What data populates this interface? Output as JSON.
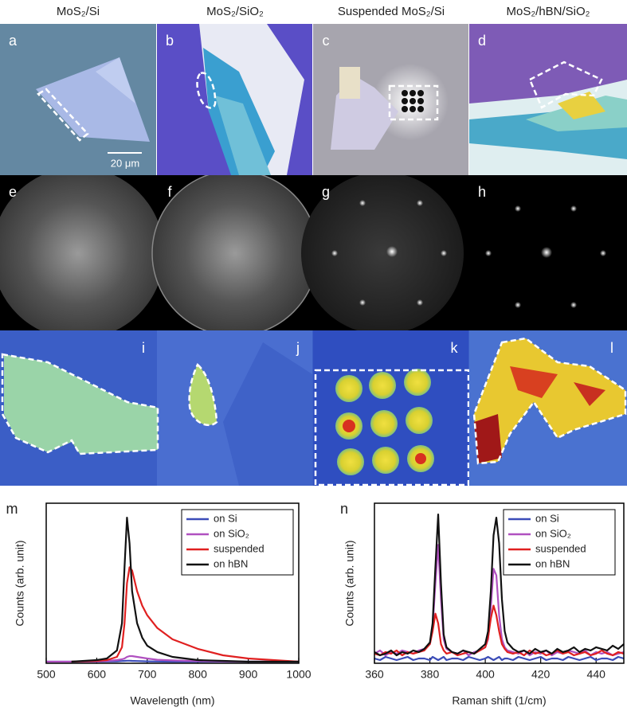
{
  "column_titles": [
    "MoS₂/Si",
    "MoS₂/SiO₂",
    "Suspended MoS₂/Si",
    "MoS₂/hBN/SiO₂"
  ],
  "panel_labels": [
    "a",
    "b",
    "c",
    "d",
    "e",
    "f",
    "g",
    "h",
    "i",
    "j",
    "k",
    "l"
  ],
  "scale_bar": "20 μm",
  "chart_data": [
    {
      "type": "line",
      "label": "m",
      "xlabel": "Wavelength (nm)",
      "ylabel": "Counts (arb. unit)",
      "xlim": [
        500,
        1000
      ],
      "xticks": [
        500,
        600,
        700,
        800,
        900,
        1000
      ],
      "ylim": [
        0,
        1
      ],
      "x": [
        500,
        550,
        600,
        620,
        640,
        650,
        655,
        660,
        665,
        670,
        680,
        690,
        700,
        720,
        750,
        800,
        850,
        900,
        950,
        1000
      ],
      "series": [
        {
          "name": "on Si",
          "color": "#3b4cb8",
          "values": [
            0.01,
            0.01,
            0.01,
            0.011,
            0.012,
            0.014,
            0.015,
            0.016,
            0.016,
            0.015,
            0.014,
            0.013,
            0.012,
            0.011,
            0.01,
            0.01,
            0.01,
            0.01,
            0.01,
            0.01
          ]
        },
        {
          "name": "on SiO₂",
          "color": "#b050c0",
          "values": [
            0.01,
            0.01,
            0.012,
            0.015,
            0.02,
            0.025,
            0.03,
            0.04,
            0.045,
            0.045,
            0.04,
            0.035,
            0.03,
            0.022,
            0.018,
            0.014,
            0.012,
            0.01,
            0.01,
            0.01
          ]
        },
        {
          "name": "suspended",
          "color": "#e02020",
          "values": [
            null,
            0.01,
            0.015,
            0.02,
            0.04,
            0.1,
            0.25,
            0.5,
            0.6,
            0.58,
            0.45,
            0.36,
            0.3,
            0.22,
            0.15,
            0.09,
            0.05,
            0.03,
            0.02,
            0.01
          ]
        },
        {
          "name": "on hBN",
          "color": "#111111",
          "values": [
            null,
            0.01,
            0.02,
            0.03,
            0.08,
            0.25,
            0.6,
            0.91,
            0.75,
            0.45,
            0.25,
            0.16,
            0.11,
            0.07,
            0.04,
            0.02,
            0.015,
            0.01,
            0.01,
            0.01
          ]
        }
      ]
    },
    {
      "type": "line",
      "label": "n",
      "xlabel": "Raman shift (1/cm)",
      "ylabel": "Counts (arb. unit)",
      "xlim": [
        360,
        450
      ],
      "xticks": [
        360,
        380,
        400,
        420,
        440
      ],
      "ylim": [
        0,
        1
      ],
      "x": [
        360,
        362,
        364,
        366,
        368,
        370,
        372,
        374,
        376,
        378,
        380,
        381,
        382,
        383,
        384,
        385,
        386,
        388,
        390,
        392,
        394,
        396,
        398,
        400,
        401,
        402,
        403,
        404,
        405,
        406,
        407,
        408,
        410,
        412,
        414,
        416,
        418,
        420,
        422,
        424,
        426,
        428,
        430,
        432,
        434,
        436,
        438,
        440,
        442,
        444,
        446,
        448,
        450
      ],
      "series": [
        {
          "name": "on Si",
          "color": "#3b4cb8",
          "values": [
            0.03,
            0.02,
            0.04,
            0.03,
            0.02,
            0.03,
            0.04,
            0.02,
            0.03,
            0.03,
            0.02,
            0.04,
            0.03,
            0.02,
            0.03,
            0.04,
            0.02,
            0.03,
            0.03,
            0.02,
            0.04,
            0.03,
            0.02,
            0.03,
            0.04,
            0.03,
            0.02,
            0.03,
            0.04,
            0.02,
            0.03,
            0.03,
            0.02,
            0.04,
            0.03,
            0.02,
            0.03,
            0.04,
            0.02,
            0.03,
            0.03,
            0.02,
            0.04,
            0.03,
            0.02,
            0.03,
            0.04,
            0.02,
            0.03,
            0.03,
            0.02,
            0.04,
            0.03
          ]
        },
        {
          "name": "on SiO₂",
          "color": "#b050c0",
          "values": [
            0.06,
            0.08,
            0.05,
            0.07,
            0.06,
            0.08,
            0.07,
            0.06,
            0.08,
            0.09,
            0.12,
            0.22,
            0.5,
            0.74,
            0.4,
            0.15,
            0.09,
            0.07,
            0.06,
            0.08,
            0.05,
            0.07,
            0.08,
            0.1,
            0.15,
            0.35,
            0.59,
            0.55,
            0.3,
            0.15,
            0.1,
            0.08,
            0.07,
            0.06,
            0.08,
            0.05,
            0.07,
            0.06,
            0.08,
            0.05,
            0.07,
            0.06,
            0.08,
            0.07,
            0.06,
            0.08,
            0.05,
            0.07,
            0.06,
            0.07,
            0.05,
            0.06,
            0.07
          ]
        },
        {
          "name": "suspended",
          "color": "#e02020",
          "values": [
            0.06,
            0.05,
            0.07,
            0.06,
            0.08,
            0.05,
            0.07,
            0.06,
            0.07,
            0.08,
            0.12,
            0.2,
            0.31,
            0.25,
            0.12,
            0.08,
            0.06,
            0.07,
            0.05,
            0.06,
            0.07,
            0.06,
            0.08,
            0.1,
            0.16,
            0.28,
            0.36,
            0.3,
            0.2,
            0.12,
            0.09,
            0.07,
            0.06,
            0.07,
            0.05,
            0.08,
            0.06,
            0.07,
            0.05,
            0.06,
            0.08,
            0.06,
            0.07,
            0.05,
            0.06,
            0.07,
            0.05,
            0.06,
            0.08,
            0.06,
            0.05,
            0.07,
            0.06
          ]
        },
        {
          "name": "on hBN",
          "color": "#111111",
          "values": [
            0.07,
            0.05,
            0.06,
            0.08,
            0.05,
            0.07,
            0.06,
            0.08,
            0.07,
            0.09,
            0.13,
            0.25,
            0.6,
            0.93,
            0.5,
            0.18,
            0.1,
            0.07,
            0.06,
            0.08,
            0.07,
            0.06,
            0.09,
            0.12,
            0.2,
            0.45,
            0.8,
            0.91,
            0.75,
            0.4,
            0.2,
            0.13,
            0.09,
            0.07,
            0.08,
            0.06,
            0.09,
            0.07,
            0.08,
            0.06,
            0.09,
            0.07,
            0.08,
            0.1,
            0.07,
            0.09,
            0.08,
            0.1,
            0.09,
            0.08,
            0.11,
            0.09,
            0.12
          ]
        }
      ]
    }
  ]
}
